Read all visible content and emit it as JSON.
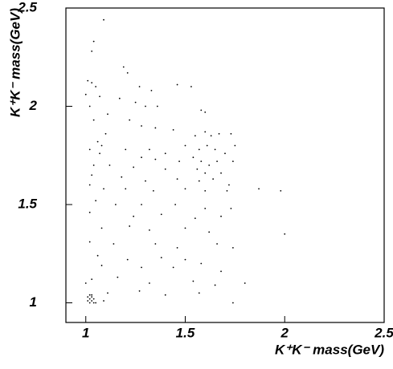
{
  "chart_data": {
    "type": "scatter",
    "x_label": "K⁺K⁻ mass(GeV)",
    "y_label": "K⁺K⁻ mass(GeV)",
    "xlim": [
      0.9,
      2.5
    ],
    "ylim": [
      0.9,
      2.5
    ],
    "xticks": [
      1,
      1.5,
      2,
      2.5
    ],
    "yticks": [
      1,
      1.5,
      2,
      2.5
    ],
    "color": "#000000",
    "series": [
      {
        "name": null,
        "x": [
          1.09,
          1.04,
          1.03,
          1.19,
          1.21,
          1.01,
          1.03,
          1.05,
          1.27,
          1.33,
          1.46,
          1.53,
          1.0,
          1.07,
          1.17,
          1.25,
          1.3,
          1.36,
          1.02,
          1.11,
          1.58,
          1.6,
          1.22,
          1.04,
          1.28,
          1.35,
          1.44,
          1.1,
          1.55,
          1.6,
          1.63,
          1.67,
          1.73,
          1.75,
          1.06,
          1.08,
          1.07,
          1.02,
          1.2,
          1.32,
          1.4,
          1.5,
          1.57,
          1.61,
          1.65,
          1.7,
          1.28,
          1.35,
          1.47,
          1.54,
          1.58,
          1.62,
          1.66,
          1.74,
          1.04,
          1.12,
          1.24,
          1.4,
          1.56,
          1.6,
          1.68,
          1.03,
          1.18,
          1.3,
          1.46,
          1.57,
          1.64,
          1.72,
          1.87,
          1.98,
          1.02,
          1.09,
          1.2,
          1.34,
          1.5,
          1.6,
          1.71,
          1.05,
          1.15,
          1.28,
          1.45,
          1.6,
          1.73,
          1.02,
          1.24,
          1.38,
          1.55,
          1.68,
          1.08,
          1.22,
          1.32,
          1.5,
          1.62,
          2.0,
          1.02,
          1.14,
          1.35,
          1.46,
          1.66,
          1.74,
          1.06,
          1.21,
          1.38,
          1.5,
          1.58,
          1.08,
          1.28,
          1.44,
          1.68,
          1.03,
          1.16,
          1.32,
          1.54,
          1.65,
          1.8,
          1.0,
          1.11,
          1.27,
          1.4,
          1.57,
          1.74,
          1.02,
          1.03,
          1.01,
          1.04,
          1.02,
          1.03,
          1.02,
          1.01,
          1.03,
          1.04,
          1.05,
          1.09
        ],
        "y": [
          2.44,
          2.33,
          2.28,
          2.2,
          2.17,
          2.13,
          2.12,
          2.1,
          2.1,
          2.08,
          2.11,
          2.1,
          2.06,
          2.05,
          2.04,
          2.02,
          2.0,
          2.0,
          2.0,
          1.96,
          1.98,
          1.97,
          1.93,
          1.93,
          1.9,
          1.89,
          1.88,
          1.86,
          1.85,
          1.87,
          1.85,
          1.86,
          1.86,
          1.8,
          1.82,
          1.8,
          1.76,
          1.78,
          1.78,
          1.78,
          1.76,
          1.8,
          1.78,
          1.8,
          1.78,
          1.76,
          1.74,
          1.73,
          1.72,
          1.74,
          1.72,
          1.7,
          1.72,
          1.72,
          1.7,
          1.7,
          1.69,
          1.68,
          1.68,
          1.66,
          1.66,
          1.65,
          1.64,
          1.62,
          1.63,
          1.62,
          1.63,
          1.6,
          1.58,
          1.57,
          1.6,
          1.58,
          1.58,
          1.57,
          1.58,
          1.57,
          1.57,
          1.52,
          1.5,
          1.5,
          1.5,
          1.48,
          1.48,
          1.46,
          1.44,
          1.45,
          1.43,
          1.44,
          1.38,
          1.39,
          1.37,
          1.38,
          1.36,
          1.35,
          1.31,
          1.3,
          1.3,
          1.28,
          1.3,
          1.28,
          1.24,
          1.22,
          1.23,
          1.22,
          1.2,
          1.19,
          1.18,
          1.18,
          1.16,
          1.12,
          1.13,
          1.1,
          1.11,
          1.09,
          1.1,
          1.1,
          1.05,
          1.06,
          1.04,
          1.05,
          1.0,
          1.02,
          1.03,
          1.03,
          1.02,
          1.0,
          1.01,
          1.04,
          1.01,
          1.04,
          1.0,
          1.0,
          1.01
        ]
      }
    ]
  }
}
